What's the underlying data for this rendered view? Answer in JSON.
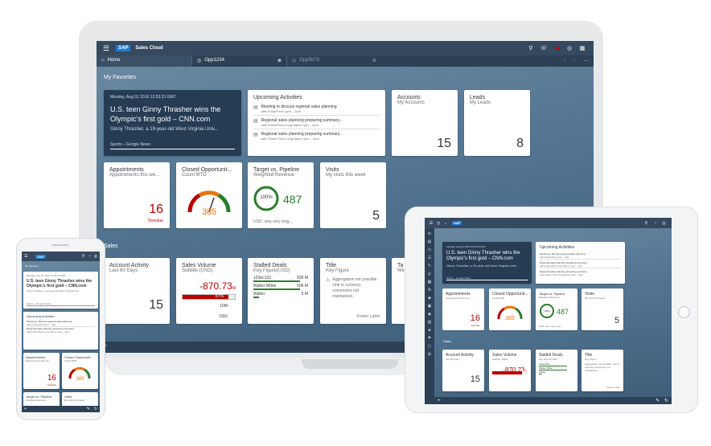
{
  "shell": {
    "title": "Sales Cloud",
    "logo": "SAP"
  },
  "tabs": [
    {
      "label": "Home"
    },
    {
      "label": "Opp1234"
    },
    {
      "label": "Opp5678"
    }
  ],
  "sections": {
    "favorites": "My Favorites",
    "sales": "Sales"
  },
  "news": {
    "date": "Monday, Aug 01 2016 12:53:23 GMT",
    "headline": "U.S. teen Ginny Thrasher wins the Olympic's first gold – CNN.com",
    "sub": "Ginny Thrasher, a 19-year-old West Virginia Univ...",
    "footer": "Sports – Google News"
  },
  "upcoming": {
    "title": "Upcoming Activities",
    "items": [
      {
        "title": "Meeting to discuss regional sales planning",
        "sub": "with FutureTech 1pm – 2pm"
      },
      {
        "title": "Regional sales planning preparing summary...",
        "sub": "with FutureTech Long Name 1pm – 2pm"
      },
      {
        "title": "Regional sales planning preparing summary...",
        "sub": "with Future Tech Long Name 1pm – 2pm"
      }
    ]
  },
  "accounts": {
    "title": "Accounts",
    "sub": "My Accounts",
    "value": "15"
  },
  "leads": {
    "title": "Leads",
    "sub": "My Leads",
    "value": "8"
  },
  "appointments": {
    "title": "Appointments",
    "sub": "Appointments this we...",
    "value": "16",
    "status": "Overdue"
  },
  "closed": {
    "title": "Closed Opportunit...",
    "sub": "Count MTD",
    "value": "385"
  },
  "target": {
    "title": "Target vs. Pipeline",
    "sub": "Weighted Revenue",
    "pct": "100%",
    "value": "487",
    "footer": "USD, very very long..."
  },
  "visits": {
    "title": "Visits",
    "sub": "My visits this week",
    "value": "5"
  },
  "activity": {
    "title": "Account Activity",
    "sub": "Last 60 Days",
    "value": "15"
  },
  "volume": {
    "title": "Sales Volume",
    "sub": "Subtitle (USD)",
    "value": "-870.73",
    "unit": "M",
    "bar": "87%",
    "target": "10M",
    "footer": "USD"
  },
  "stalled": {
    "title": "Stalled Deals",
    "sub": "Key Figure(USD)",
    "rows": [
      {
        "name": "123ec123",
        "value": "500 M"
      },
      {
        "name": "Walter White",
        "value": "500 M"
      },
      {
        "name": "Walter",
        "value": "5 M"
      }
    ]
  },
  "kf": {
    "title": "Title",
    "sub": "Key Figure",
    "msg": "Aggregation not possible. Unit or currency conversion not maintained.",
    "footer": "Footer Label"
  },
  "cut": {
    "title": "Ta",
    "sub": "We"
  },
  "colors": {
    "shell": "#354a5f",
    "news": "#253c53",
    "critical": "#bb0000",
    "good": "#2b7d2b",
    "gauge": "#e9730c"
  }
}
